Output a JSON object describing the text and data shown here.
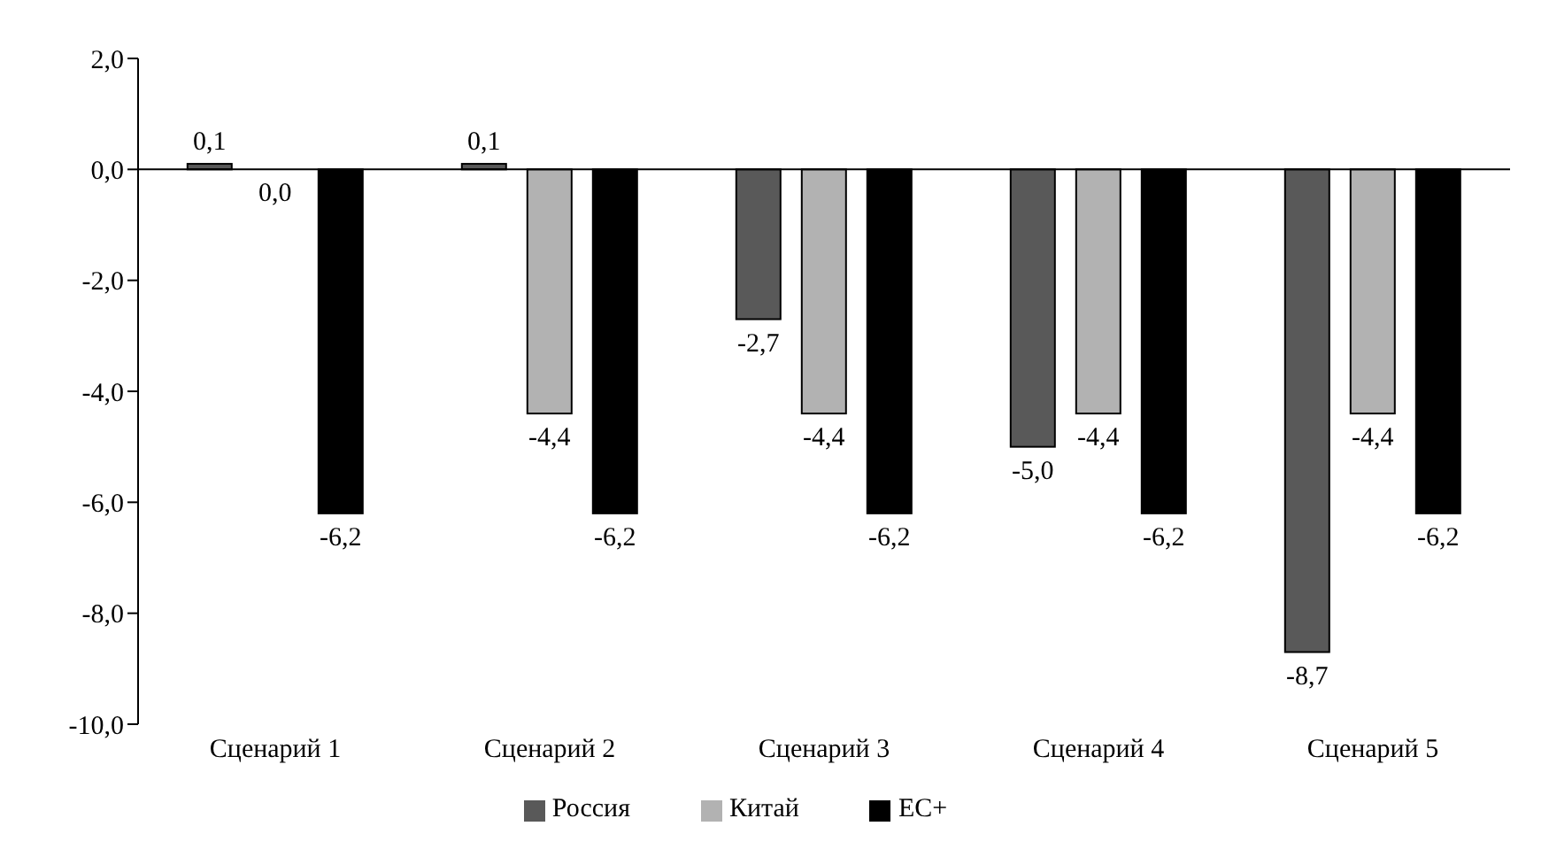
{
  "chart_data": {
    "type": "bar",
    "categories": [
      "Сценарий 1",
      "Сценарий 2",
      "Сценарий 3",
      "Сценарий 4",
      "Сценарий 5"
    ],
    "series": [
      {
        "name": "Россия",
        "color": "#595959",
        "values": [
          0.1,
          0.1,
          -2.7,
          -5.0,
          -8.7
        ],
        "value_labels": [
          "0,1",
          "0,1",
          "-2,7",
          "-5,0",
          "-8,7"
        ]
      },
      {
        "name": "Китай",
        "color": "#b2b2b2",
        "values": [
          0.0,
          -4.4,
          -4.4,
          -4.4,
          -4.4
        ],
        "value_labels": [
          "0,0",
          "-4,4",
          "-4,4",
          "-4,4",
          "-4,4"
        ]
      },
      {
        "name": "ЕС+",
        "color": "#000000",
        "values": [
          -6.2,
          -6.2,
          -6.2,
          -6.2,
          -6.2
        ],
        "value_labels": [
          "-6,2",
          "-6,2",
          "-6,2",
          "-6,2",
          "-6,2"
        ]
      }
    ],
    "ylim": [
      -10,
      2
    ],
    "yticks": [
      {
        "value": -10,
        "label": "-10,0"
      },
      {
        "value": -8,
        "label": "-8,0"
      },
      {
        "value": -6,
        "label": "-6,0"
      },
      {
        "value": -4,
        "label": "-4,0"
      },
      {
        "value": -2,
        "label": "-2,0"
      },
      {
        "value": 0,
        "label": "0,0"
      },
      {
        "value": 2,
        "label": "2,0"
      }
    ],
    "ref_lines": [
      {
        "axis": "y",
        "value": 0,
        "color": "#000000"
      }
    ],
    "grid": false,
    "legend": "bottom"
  }
}
